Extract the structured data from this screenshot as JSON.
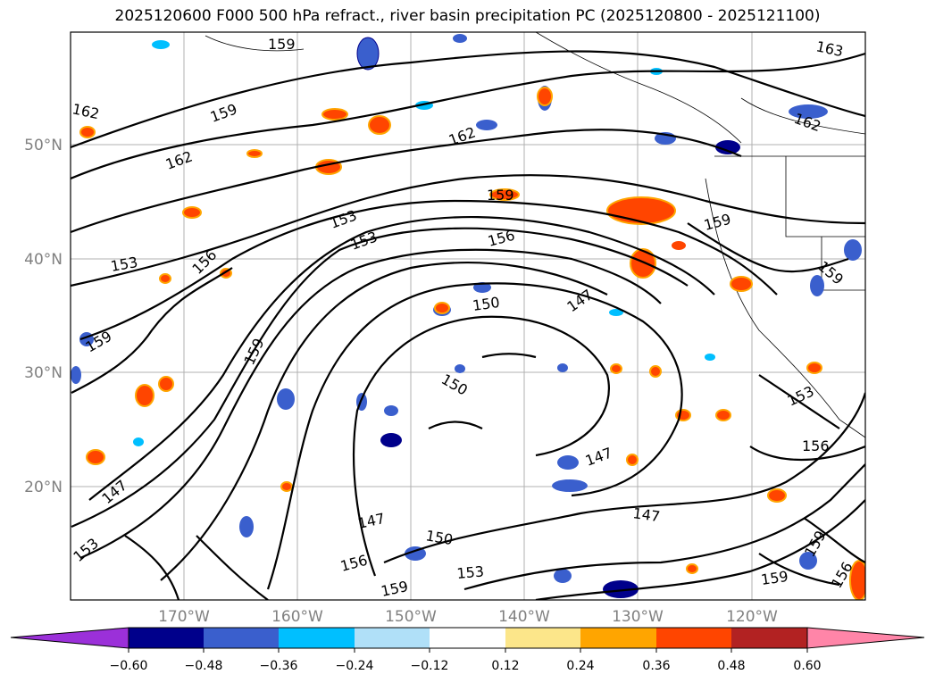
{
  "title": "2025120600 F000 500 hPa refract., river basin precipitation PC (2025120800 - 2025121100)",
  "map": {
    "lat_labels": [
      "50°N",
      "40°N",
      "30°N",
      "20°N"
    ],
    "lon_labels": [
      "170°W",
      "160°W",
      "150°W",
      "140°W",
      "130°W",
      "120°W"
    ],
    "contour_labels": [
      "162",
      "159",
      "162",
      "162",
      "159",
      "153",
      "153",
      "156",
      "156",
      "153",
      "159",
      "150",
      "147",
      "150",
      "159",
      "159",
      "147",
      "147",
      "147",
      "150",
      "153",
      "159",
      "156",
      "153",
      "147",
      "159",
      "156",
      "159",
      "159",
      "159",
      "156",
      "153",
      "162",
      "163"
    ]
  },
  "colorbar": {
    "ticks": [
      "−0.60",
      "−0.48",
      "−0.36",
      "−0.24",
      "−0.12",
      "0.12",
      "0.24",
      "0.36",
      "0.48",
      "0.60"
    ],
    "colors": [
      "#9b30d9",
      "#00008b",
      "#3a5fcd",
      "#00bfff",
      "#b0e0f8",
      "#ffffff",
      "#fce68a",
      "#ffa500",
      "#ff4500",
      "#b22222",
      "#ff85a8"
    ]
  }
}
